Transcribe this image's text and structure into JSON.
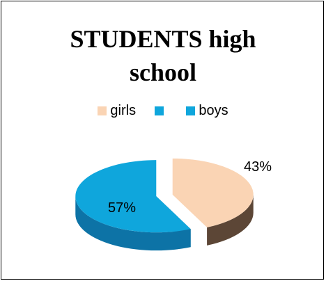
{
  "chart_data": {
    "type": "pie",
    "title": "STUDENTS high school",
    "categories": [
      "girls",
      "",
      "boys"
    ],
    "values": [
      43,
      0,
      57
    ],
    "labels": [
      "43%",
      "",
      "57%"
    ],
    "colors": [
      "#fad4b4",
      "#0fa6dc",
      "#0fa6dc"
    ],
    "side_colors": [
      "#5c4636",
      "#0d73a6",
      "#0d73a6"
    ],
    "legend_position": "top",
    "exploded": true,
    "three_d": true
  }
}
